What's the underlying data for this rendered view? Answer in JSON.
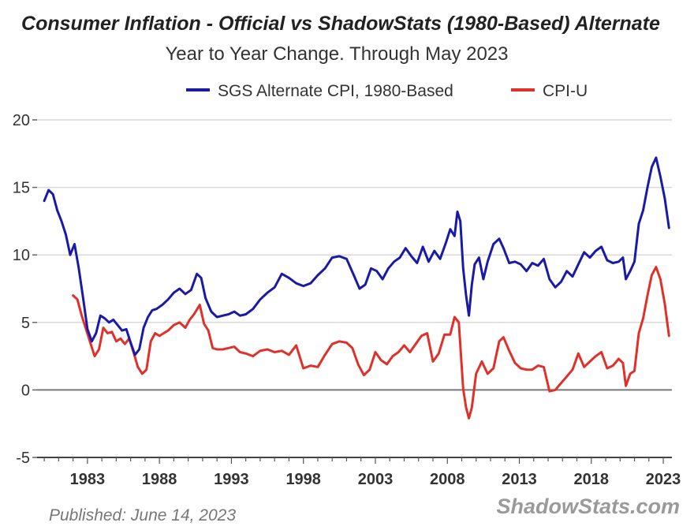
{
  "chart_data": {
    "type": "line",
    "title": "Consumer Inflation - Official vs ShadowStats (1980-Based) Alternate",
    "subtitle": "Year to Year Change. Through May 2023",
    "xlabel": "",
    "ylabel": "",
    "xlim": [
      1979.5,
      2023.6
    ],
    "ylim": [
      -5,
      20
    ],
    "y_ticks": [
      -5,
      0,
      5,
      10,
      15,
      20
    ],
    "x_ticks": [
      1983,
      1988,
      1993,
      1998,
      2003,
      2008,
      2013,
      2018,
      2023
    ],
    "grid": true,
    "legend_position": "top-center",
    "zero_line": true,
    "colors": {
      "sgs": "#1a1aa6",
      "cpi": "#e0302a",
      "grid": "#d8d8d8",
      "zero": "#777777",
      "text": "#333333"
    },
    "series": [
      {
        "name": "SGS Alternate CPI, 1980-Based",
        "color": "#1a1aa6",
        "x": [
          1980.0,
          1980.3,
          1980.6,
          1980.9,
          1981.2,
          1981.5,
          1981.8,
          1982.1,
          1982.4,
          1982.7,
          1983.0,
          1983.3,
          1983.6,
          1983.9,
          1984.2,
          1984.5,
          1984.8,
          1985.1,
          1985.4,
          1985.7,
          1986.0,
          1986.3,
          1986.6,
          1986.9,
          1987.2,
          1987.5,
          1987.8,
          1988.2,
          1988.6,
          1989.0,
          1989.4,
          1989.8,
          1990.2,
          1990.6,
          1990.9,
          1991.2,
          1991.6,
          1992.0,
          1992.4,
          1992.8,
          1993.2,
          1993.6,
          1994.0,
          1994.5,
          1995.0,
          1995.5,
          1996.0,
          1996.5,
          1997.0,
          1997.5,
          1998.0,
          1998.5,
          1999.0,
          1999.5,
          2000.0,
          2000.5,
          2001.0,
          2001.5,
          2001.9,
          2002.3,
          2002.7,
          2003.1,
          2003.5,
          2003.9,
          2004.3,
          2004.7,
          2005.1,
          2005.5,
          2005.9,
          2006.3,
          2006.7,
          2007.1,
          2007.5,
          2007.9,
          2008.2,
          2008.5,
          2008.7,
          2008.9,
          2009.1,
          2009.3,
          2009.5,
          2009.7,
          2009.9,
          2010.2,
          2010.5,
          2010.8,
          2011.2,
          2011.6,
          2011.9,
          2012.3,
          2012.7,
          2013.1,
          2013.5,
          2013.9,
          2014.3,
          2014.7,
          2015.1,
          2015.5,
          2015.9,
          2016.3,
          2016.7,
          2017.1,
          2017.5,
          2017.9,
          2018.3,
          2018.7,
          2019.1,
          2019.5,
          2019.9,
          2020.2,
          2020.4,
          2020.7,
          2021.0,
          2021.3,
          2021.6,
          2021.9,
          2022.2,
          2022.5,
          2022.8,
          2023.1,
          2023.4
        ],
        "y": [
          14.0,
          14.8,
          14.5,
          13.3,
          12.5,
          11.5,
          10.0,
          10.8,
          9.0,
          6.8,
          4.5,
          3.6,
          4.2,
          5.5,
          5.3,
          5.0,
          5.2,
          4.8,
          4.4,
          4.5,
          3.5,
          2.6,
          3.0,
          4.6,
          5.4,
          5.9,
          6.0,
          6.3,
          6.7,
          7.2,
          7.5,
          7.1,
          7.4,
          8.6,
          8.3,
          6.8,
          5.8,
          5.4,
          5.5,
          5.6,
          5.8,
          5.5,
          5.6,
          6.0,
          6.7,
          7.2,
          7.6,
          8.6,
          8.3,
          7.9,
          7.7,
          7.9,
          8.5,
          9.0,
          9.8,
          9.9,
          9.7,
          8.5,
          7.5,
          7.8,
          9.0,
          8.8,
          8.2,
          9.0,
          9.5,
          9.8,
          10.5,
          9.9,
          9.4,
          10.6,
          9.5,
          10.3,
          9.7,
          10.9,
          11.9,
          11.4,
          13.2,
          12.5,
          9.0,
          7.0,
          5.5,
          7.8,
          9.3,
          9.8,
          8.2,
          9.5,
          10.8,
          11.2,
          10.5,
          9.4,
          9.5,
          9.3,
          8.8,
          9.4,
          9.2,
          9.7,
          8.2,
          7.6,
          8.0,
          8.8,
          8.4,
          9.3,
          10.2,
          9.8,
          10.3,
          10.6,
          9.6,
          9.4,
          9.5,
          9.8,
          8.2,
          8.8,
          9.5,
          12.3,
          13.3,
          15.0,
          16.5,
          17.2,
          15.8,
          14.2,
          12.0
        ]
      },
      {
        "name": "CPI-U",
        "color": "#e0302a",
        "x": [
          1982.0,
          1982.3,
          1982.6,
          1982.9,
          1983.2,
          1983.5,
          1983.8,
          1984.1,
          1984.4,
          1984.7,
          1985.0,
          1985.3,
          1985.6,
          1985.9,
          1986.2,
          1986.5,
          1986.8,
          1987.1,
          1987.4,
          1987.7,
          1988.0,
          1988.3,
          1988.6,
          1989.0,
          1989.4,
          1989.8,
          1990.1,
          1990.4,
          1990.8,
          1991.1,
          1991.4,
          1991.7,
          1992.0,
          1992.4,
          1992.8,
          1993.2,
          1993.6,
          1994.0,
          1994.5,
          1995.0,
          1995.5,
          1996.0,
          1996.5,
          1997.0,
          1997.5,
          1998.0,
          1998.5,
          1999.0,
          1999.5,
          2000.0,
          2000.5,
          2001.0,
          2001.4,
          2001.8,
          2002.2,
          2002.6,
          2003.0,
          2003.4,
          2003.8,
          2004.2,
          2004.6,
          2005.0,
          2005.4,
          2005.8,
          2006.2,
          2006.6,
          2007.0,
          2007.4,
          2007.8,
          2008.2,
          2008.5,
          2008.8,
          2009.1,
          2009.3,
          2009.5,
          2009.7,
          2010.0,
          2010.4,
          2010.8,
          2011.2,
          2011.6,
          2011.9,
          2012.3,
          2012.7,
          2013.1,
          2013.5,
          2013.9,
          2014.3,
          2014.7,
          2015.1,
          2015.5,
          2015.9,
          2016.3,
          2016.7,
          2017.1,
          2017.5,
          2017.9,
          2018.3,
          2018.7,
          2019.1,
          2019.5,
          2019.9,
          2020.2,
          2020.4,
          2020.7,
          2021.0,
          2021.3,
          2021.6,
          2021.9,
          2022.2,
          2022.5,
          2022.8,
          2023.1,
          2023.4
        ],
        "y": [
          7.0,
          6.7,
          5.5,
          4.5,
          3.5,
          2.5,
          3.0,
          4.6,
          4.2,
          4.3,
          3.6,
          3.8,
          3.4,
          3.8,
          2.8,
          1.7,
          1.2,
          1.5,
          3.6,
          4.2,
          4.0,
          4.2,
          4.4,
          4.8,
          5.0,
          4.6,
          5.2,
          5.6,
          6.3,
          4.9,
          4.4,
          3.1,
          3.0,
          3.0,
          3.1,
          3.2,
          2.8,
          2.7,
          2.5,
          2.9,
          3.0,
          2.8,
          2.9,
          2.6,
          3.3,
          1.6,
          1.8,
          1.7,
          2.6,
          3.4,
          3.6,
          3.5,
          3.1,
          1.9,
          1.1,
          1.5,
          2.8,
          2.2,
          1.9,
          2.5,
          2.8,
          3.3,
          2.8,
          3.4,
          4.0,
          4.2,
          2.1,
          2.7,
          4.1,
          4.1,
          5.4,
          5.0,
          0.1,
          -1.3,
          -2.1,
          -1.3,
          1.2,
          2.1,
          1.2,
          1.6,
          3.6,
          3.9,
          2.9,
          2.0,
          1.6,
          1.5,
          1.5,
          1.8,
          1.7,
          -0.1,
          0.0,
          0.5,
          1.0,
          1.5,
          2.7,
          1.7,
          2.1,
          2.5,
          2.8,
          1.6,
          1.8,
          2.3,
          2.0,
          0.3,
          1.2,
          1.4,
          4.2,
          5.3,
          7.0,
          8.5,
          9.1,
          8.2,
          6.4,
          4.0
        ]
      }
    ]
  },
  "footer": {
    "published": "Published: June 14, 2023",
    "brand": "ShadowStats.com"
  }
}
